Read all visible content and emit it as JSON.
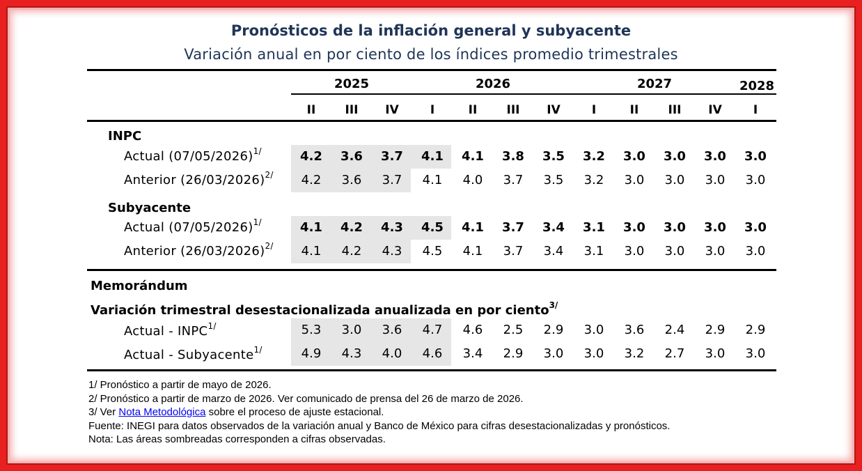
{
  "title": "Pronósticos de la inflación general y subyacente",
  "subtitle": "Variación anual en por ciento de los índices promedio trimestrales",
  "years": [
    {
      "label": "2025"
    },
    {
      "label": "2026"
    },
    {
      "label": "2027"
    },
    {
      "label": "2028"
    }
  ],
  "quarters": [
    "II",
    "III",
    "IV",
    "I",
    "II",
    "III",
    "IV",
    "I",
    "II",
    "III",
    "IV",
    "I"
  ],
  "sections": {
    "inpc": "INPC",
    "subyacente": "Subyacente",
    "memorandum": "Memorándum",
    "variacion": "Variación trimestral desestacionalizada anualizada en por ciento",
    "variacion_sup": "3/"
  },
  "rows": [
    {
      "label": "Actual (07/05/2026)",
      "sup": "1/",
      "bold": true,
      "values": [
        "4.2",
        "3.6",
        "3.7",
        "4.1",
        "4.1",
        "3.8",
        "3.5",
        "3.2",
        "3.0",
        "3.0",
        "3.0",
        "3.0"
      ]
    },
    {
      "label": "Anterior (26/03/2026)",
      "sup": "2/",
      "bold": false,
      "values": [
        "4.2",
        "3.6",
        "3.7",
        "4.1",
        "4.0",
        "3.7",
        "3.5",
        "3.2",
        "3.0",
        "3.0",
        "3.0",
        "3.0"
      ]
    },
    {
      "label": "Actual (07/05/2026)",
      "sup": "1/",
      "bold": true,
      "values": [
        "4.1",
        "4.2",
        "4.3",
        "4.5",
        "4.1",
        "3.7",
        "3.4",
        "3.1",
        "3.0",
        "3.0",
        "3.0",
        "3.0"
      ]
    },
    {
      "label": "Anterior (26/03/2026)",
      "sup": "2/",
      "bold": false,
      "values": [
        "4.1",
        "4.2",
        "4.3",
        "4.5",
        "4.1",
        "3.7",
        "3.4",
        "3.1",
        "3.0",
        "3.0",
        "3.0",
        "3.0"
      ]
    },
    {
      "label": "Actual - INPC",
      "sup": "1/",
      "bold": false,
      "values": [
        "5.3",
        "3.0",
        "3.6",
        "4.7",
        "4.6",
        "2.5",
        "2.9",
        "3.0",
        "3.6",
        "2.4",
        "2.9",
        "2.9"
      ]
    },
    {
      "label": "Actual - Subyacente",
      "sup": "1/",
      "bold": false,
      "values": [
        "4.9",
        "4.3",
        "4.0",
        "4.6",
        "3.4",
        "2.9",
        "3.0",
        "3.0",
        "3.2",
        "2.7",
        "3.0",
        "3.0"
      ]
    }
  ],
  "notes": {
    "n1": "1/ Pronóstico a partir de mayo de 2026.",
    "n2": "2/ Pronóstico a partir de marzo de 2026. Ver comunicado de prensa del 26 de marzo de 2026.",
    "n3_pre": "3/ Ver ",
    "n3_link": "Nota Metodológica",
    "n3_post": " sobre el proceso de ajuste estacional.",
    "fuente": "Fuente: INEGI para datos observados de la variación anual y Banco de México para cifras desestacionalizadas y pronósticos.",
    "nota": "Nota: Las áreas sombreadas corresponden a cifras observadas."
  }
}
